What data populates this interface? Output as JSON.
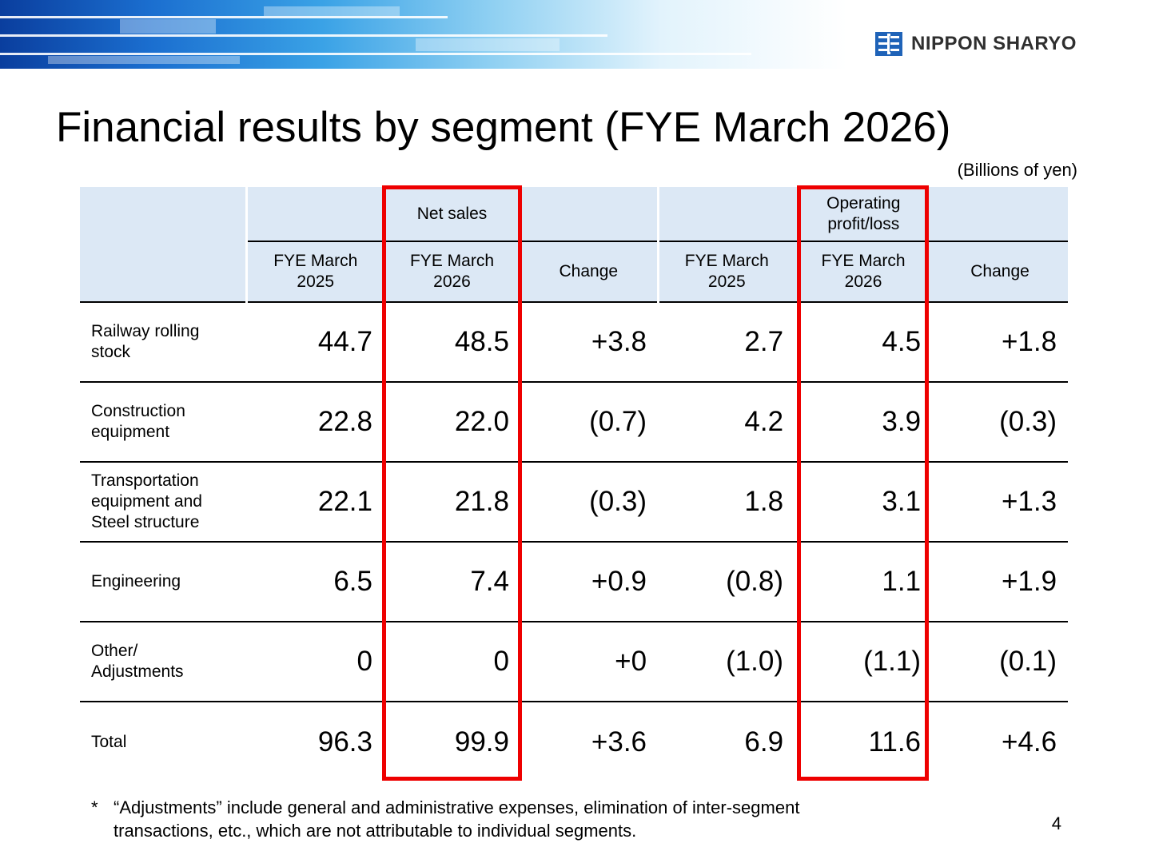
{
  "header": {
    "logo_text": "NIPPON SHARYO",
    "logo_icon": "nippon-sharyo-emblem",
    "brand_color": "#1f63b8"
  },
  "title": "Financial results by segment (FYE March 2026)",
  "unit": "(Billions of yen)",
  "table": {
    "group_headers": {
      "net_sales": "Net sales",
      "operating_profit": "Operating profit/loss"
    },
    "sub_headers": [
      "FYE March 2025",
      "FYE March 2026",
      "Change",
      "FYE March 2025",
      "FYE March 2026",
      "Change"
    ],
    "rows": [
      {
        "label": "Railway rolling stock",
        "values": [
          "44.7",
          "48.5",
          "+3.8",
          "2.7",
          "4.5",
          "+1.8"
        ]
      },
      {
        "label": "Construction equipment",
        "values": [
          "22.8",
          "22.0",
          "(0.7)",
          "4.2",
          "3.9",
          "(0.3)"
        ]
      },
      {
        "label": "Transportation equipment and Steel structure",
        "values": [
          "22.1",
          "21.8",
          "(0.3)",
          "1.8",
          "3.1",
          "+1.3"
        ]
      },
      {
        "label": "Engineering",
        "values": [
          "6.5",
          "7.4",
          "+0.9",
          "(0.8)",
          "1.1",
          "+1.9"
        ]
      },
      {
        "label": "Other/ Adjustments",
        "values": [
          "0",
          "0",
          "+0",
          "(1.0)",
          "(1.1)",
          "(0.1)"
        ]
      },
      {
        "label": "Total",
        "values": [
          "96.3",
          "99.9",
          "+3.6",
          "6.9",
          "11.6",
          "+4.6"
        ]
      }
    ],
    "header_bg": "#dce8f5",
    "highlight_color": "#ee0000"
  },
  "footnote": {
    "marker": "*",
    "text": "“Adjustments” include general and administrative expenses, elimination of inter-segment transactions, etc., which are not attributable to individual segments."
  },
  "page_number": "4"
}
